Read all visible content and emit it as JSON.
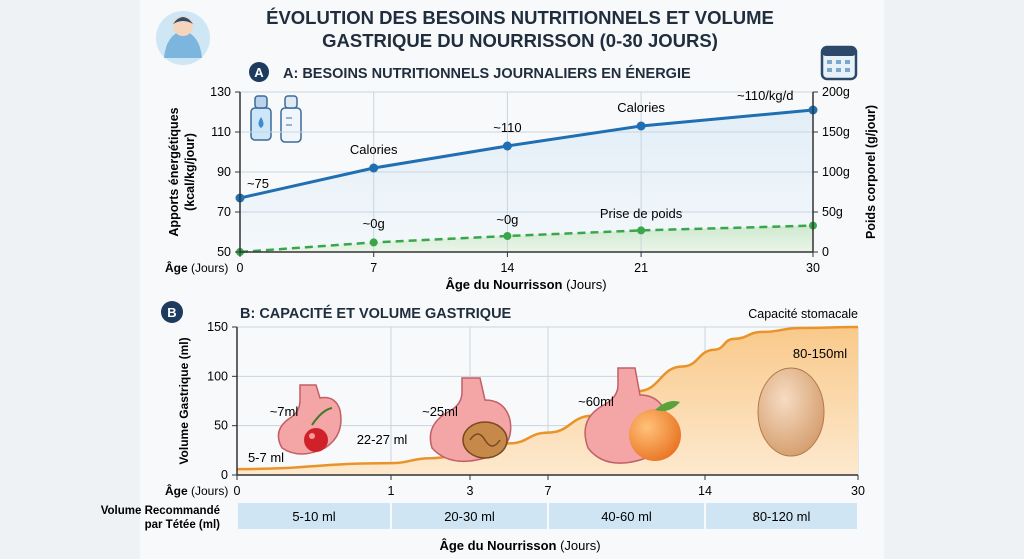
{
  "title_line1": "ÉVOLUTION DES BESOINS NUTRITIONNELS ET VOLUME",
  "title_line2": "GASTRIQUE DU NOURRISSON (0-30 JOURS)",
  "chart_data": [
    {
      "type": "line",
      "badge": "A",
      "title": "A: BESOINS NUTRITIONNELS JOURNALIERS EN ÉNERGIE",
      "ylabel_line1": "Apports énergétiques",
      "ylabel_line2": "(kcal/kg/jour)",
      "y2label": "Poids corporel (g/jour)",
      "xlabel_bold": "Âge du Nourrisson",
      "xlabel_unit": "(Jours)",
      "x_prefix_bold": "Âge",
      "x_prefix_unit": "(Jours)",
      "x": [
        0,
        7,
        14,
        21,
        30
      ],
      "ylim": [
        50,
        130
      ],
      "y_ticks": [
        50,
        70,
        90,
        110,
        130
      ],
      "y2lim": [
        0,
        200
      ],
      "y2_ticks": [
        "0",
        "50g",
        "100g",
        "150g",
        "200g"
      ],
      "series": [
        {
          "color": "#1f6fb2",
          "axis": "left",
          "style": "solid",
          "values": [
            77,
            92,
            103,
            113,
            121
          ]
        },
        {
          "color": "#3aa64a",
          "axis": "right",
          "style": "dashed",
          "values": [
            0,
            12,
            20,
            27,
            33
          ]
        }
      ],
      "annotations": [
        {
          "text": "~75",
          "x": 0,
          "y": 82
        },
        {
          "text": "Calories",
          "x": 7,
          "y": 99
        },
        {
          "text": "~110",
          "x": 14,
          "y": 110
        },
        {
          "text": "Calories",
          "x": 21,
          "y": 120
        },
        {
          "text": "~110/kg/d",
          "x": 27.5,
          "y": 126
        },
        {
          "text": "~0g",
          "x": 7,
          "y": 62
        },
        {
          "text": "~0g",
          "x": 14,
          "y": 64
        },
        {
          "text": "Prise de poids",
          "x": 21,
          "y": 67
        }
      ]
    },
    {
      "type": "area",
      "badge": "B",
      "title": "B:  CAPACITÉ ET VOLUME GASTRIQUE",
      "series_label": "Capacité stomacale",
      "ylabel": "Volume Gastrique (ml)",
      "xlabel_bold": "Âge du Nourrisson",
      "xlabel_unit": "(Jours)",
      "x_prefix_bold": "Âge",
      "x_prefix_unit": "(Jours)",
      "x_ticks": [
        0,
        1,
        3,
        7,
        14,
        30
      ],
      "ylim": [
        0,
        150
      ],
      "y_ticks": [
        0,
        50,
        100,
        150
      ],
      "curve": [
        [
          0,
          6
        ],
        [
          1,
          12
        ],
        [
          2,
          17
        ],
        [
          3,
          22
        ],
        [
          5,
          32
        ],
        [
          7,
          43
        ],
        [
          9,
          60
        ],
        [
          11,
          85
        ],
        [
          13,
          110
        ],
        [
          15,
          127
        ],
        [
          17,
          138
        ],
        [
          20,
          145
        ],
        [
          24,
          149
        ],
        [
          30,
          150
        ]
      ],
      "annotations": [
        {
          "text": "5-7 ml"
        },
        {
          "text": "~7ml"
        },
        {
          "text": "22-27 ml"
        },
        {
          "text": "~25ml"
        },
        {
          "text": "~60ml"
        },
        {
          "text": "80-150ml"
        }
      ],
      "table": {
        "row_label_line1": "Volume Recommandé",
        "row_label_line2": "par Tétée (ml)",
        "cells": [
          "5-10 ml",
          "20-30 ml",
          "40-60 ml",
          "80-120 ml"
        ]
      }
    }
  ]
}
